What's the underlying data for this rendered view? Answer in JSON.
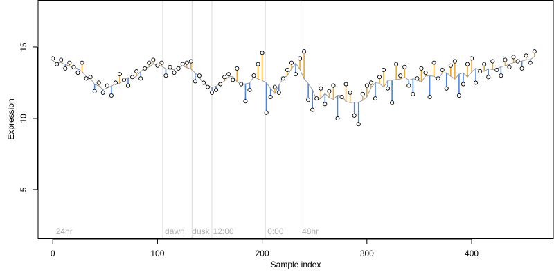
{
  "chart_data": {
    "type": "scatter",
    "title": "",
    "xlabel": "Sample index",
    "ylabel": "Expression",
    "xlim": [
      -14,
      478
    ],
    "ylim": [
      1.6,
      18.3
    ],
    "x_ticks": [
      0,
      100,
      200,
      300,
      400
    ],
    "y_ticks": [
      5,
      10,
      15
    ],
    "grid": false,
    "group_boundaries": [
      105,
      133,
      152,
      203,
      237
    ],
    "group_labels": [
      {
        "x": 3,
        "label": "24hr"
      },
      {
        "x": 107,
        "label": "dawn"
      },
      {
        "x": 133,
        "label": "dusk"
      },
      {
        "x": 153,
        "label": "12:00"
      },
      {
        "x": 205,
        "label": "0:00"
      },
      {
        "x": 238,
        "label": "48hr"
      }
    ],
    "baseline_note": "each point has a vertical segment to a smoothed baseline; orange when point is above baseline, blue when below",
    "colors": {
      "above": "#f5a623",
      "below": "#4a86e8",
      "baseline": "#999999",
      "boundary": "#d9d9d9",
      "point_fill": "#ffffff",
      "point_stroke": "#000000"
    },
    "series": [
      {
        "x": [
          0,
          4,
          8,
          12,
          16,
          20,
          24,
          28,
          32,
          36,
          40,
          44,
          48,
          52,
          56,
          60,
          64,
          68,
          72,
          76,
          80,
          84,
          88,
          92,
          96,
          100,
          104,
          108,
          112,
          116,
          120,
          124,
          128,
          132,
          136,
          140,
          144,
          148,
          152,
          156,
          160,
          164,
          168,
          172,
          176,
          180,
          184,
          188,
          192,
          196,
          200,
          204,
          208,
          212,
          216,
          220,
          224,
          228,
          232,
          236,
          240,
          244,
          248,
          252,
          256,
          260,
          264,
          268,
          272,
          276,
          280,
          284,
          288,
          292,
          296,
          300,
          304,
          308,
          312,
          316,
          320,
          324,
          328,
          332,
          336,
          340,
          344,
          348,
          352,
          356,
          360,
          364,
          368,
          372,
          376,
          380,
          384,
          388,
          392,
          396,
          400,
          404,
          408,
          412,
          416,
          420,
          424,
          428,
          432,
          436,
          440,
          444,
          448,
          452,
          456,
          460
        ],
        "y": [
          14.2,
          13.8,
          14.1,
          13.5,
          13.9,
          13.6,
          13.2,
          13.9,
          12.8,
          12.9,
          11.9,
          12.5,
          11.8,
          12.3,
          11.6,
          12.5,
          13.1,
          12.7,
          12.3,
          12.9,
          13.3,
          12.8,
          13.5,
          13.9,
          14.1,
          13.7,
          13.9,
          13.0,
          13.6,
          13.2,
          13.5,
          13.8,
          13.9,
          14.0,
          12.6,
          13.0,
          12.5,
          12.2,
          11.8,
          12.0,
          12.4,
          12.9,
          13.1,
          12.7,
          13.5,
          12.4,
          11.2,
          12.0,
          13.0,
          13.8,
          14.6,
          10.4,
          11.5,
          12.2,
          11.8,
          12.8,
          13.4,
          13.9,
          13.1,
          14.2,
          14.7,
          11.3,
          10.6,
          11.4,
          12.1,
          11.0,
          11.9,
          12.3,
          10.0,
          11.5,
          12.4,
          11.8,
          10.2,
          9.6,
          11.7,
          12.3,
          12.5,
          11.4,
          12.9,
          13.4,
          12.1,
          11.1,
          13.8,
          13.0,
          13.6,
          12.3,
          11.7,
          12.8,
          13.5,
          13.2,
          11.5,
          13.9,
          12.8,
          13.4,
          12.1,
          13.7,
          14.0,
          11.6,
          12.4,
          13.8,
          14.2,
          12.5,
          13.3,
          13.8,
          12.9,
          14.0,
          13.4,
          13.0,
          14.1,
          13.6,
          14.3,
          14.0,
          13.5,
          14.4,
          13.9,
          14.7
        ]
      }
    ]
  }
}
